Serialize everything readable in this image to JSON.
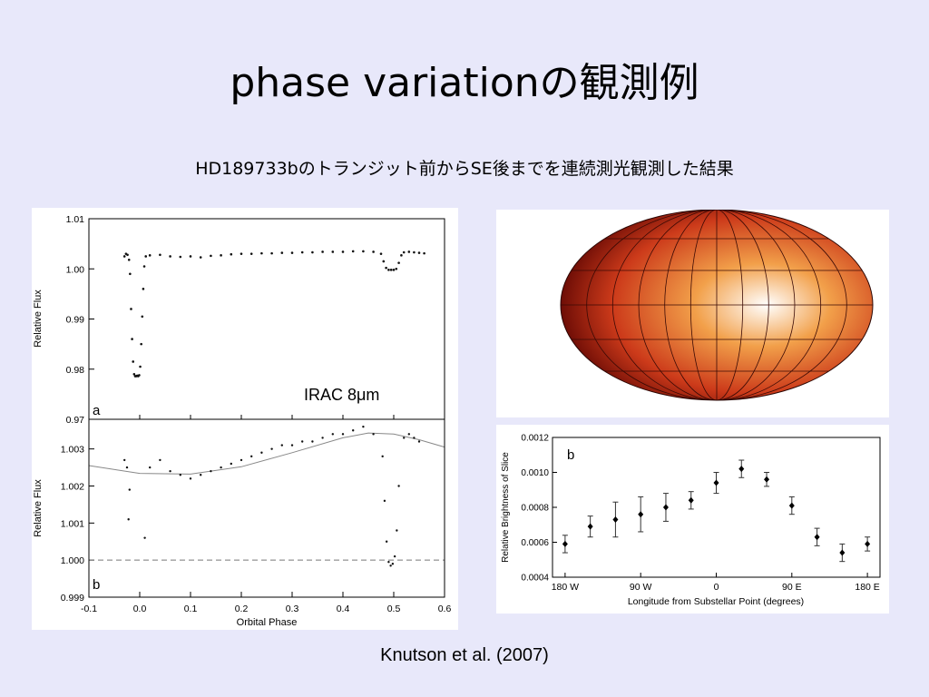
{
  "slide": {
    "title": "phase variationの観測例",
    "subtitle": "HD189733bのトランジット前からSE後までを連続測光観測した結果",
    "citation": "Knutson et al. (2007)",
    "instrument_label": "IRAC 8μm"
  },
  "colors": {
    "background": "#e8e8fa",
    "map_hot": "#ffffff",
    "map_warm": "#f2a04a",
    "map_cool": "#cc3a1a",
    "map_edge": "#6e0d06"
  },
  "map": {
    "projection": "Hammer-Aitoff"
  },
  "chart_data": [
    {
      "type": "scatter",
      "panel_label": "a",
      "xlabel": "",
      "ylabel": "Relative Flux",
      "xlim": [
        -0.1,
        0.6
      ],
      "ylim": [
        0.97,
        1.01
      ],
      "y_ticks": [
        "0.97",
        "0.98",
        "0.99",
        "1.00",
        "1.01"
      ],
      "grid": false,
      "points": [
        [
          -0.03,
          1.0025
        ],
        [
          -0.027,
          1.003
        ],
        [
          -0.024,
          1.0028
        ],
        [
          -0.021,
          1.0018
        ],
        [
          -0.019,
          0.999
        ],
        [
          -0.017,
          0.992
        ],
        [
          -0.015,
          0.986
        ],
        [
          -0.013,
          0.9815
        ],
        [
          -0.011,
          0.979
        ],
        [
          -0.009,
          0.9786
        ],
        [
          -0.007,
          0.9786
        ],
        [
          -0.005,
          0.9787
        ],
        [
          -0.003,
          0.9786
        ],
        [
          -0.001,
          0.9788
        ],
        [
          0.001,
          0.9805
        ],
        [
          0.003,
          0.985
        ],
        [
          0.005,
          0.9905
        ],
        [
          0.007,
          0.996
        ],
        [
          0.009,
          1.0005
        ],
        [
          0.012,
          1.0025
        ],
        [
          0.02,
          1.0027
        ],
        [
          0.04,
          1.0028
        ],
        [
          0.06,
          1.0025
        ],
        [
          0.08,
          1.0024
        ],
        [
          0.1,
          1.0025
        ],
        [
          0.12,
          1.0023
        ],
        [
          0.14,
          1.0026
        ],
        [
          0.16,
          1.0027
        ],
        [
          0.18,
          1.0029
        ],
        [
          0.2,
          1.003
        ],
        [
          0.22,
          1.003
        ],
        [
          0.24,
          1.0031
        ],
        [
          0.26,
          1.0031
        ],
        [
          0.28,
          1.0032
        ],
        [
          0.3,
          1.0032
        ],
        [
          0.32,
          1.0033
        ],
        [
          0.34,
          1.0033
        ],
        [
          0.36,
          1.0034
        ],
        [
          0.38,
          1.0034
        ],
        [
          0.4,
          1.0034
        ],
        [
          0.42,
          1.0035
        ],
        [
          0.44,
          1.0035
        ],
        [
          0.46,
          1.0034
        ],
        [
          0.475,
          1.003
        ],
        [
          0.48,
          1.0015
        ],
        [
          0.485,
          1.0002
        ],
        [
          0.49,
          0.9998
        ],
        [
          0.495,
          0.9998
        ],
        [
          0.5,
          0.9998
        ],
        [
          0.505,
          1.0
        ],
        [
          0.51,
          1.0012
        ],
        [
          0.515,
          1.0027
        ],
        [
          0.52,
          1.0033
        ],
        [
          0.53,
          1.0034
        ],
        [
          0.54,
          1.0033
        ],
        [
          0.55,
          1.0032
        ],
        [
          0.56,
          1.0031
        ]
      ]
    },
    {
      "type": "scatter",
      "panel_label": "b",
      "xlabel": "Orbital Phase",
      "ylabel": "Relative Flux",
      "xlim": [
        -0.1,
        0.6
      ],
      "ylim": [
        0.999,
        1.0038
      ],
      "x_ticks": [
        "-0.1",
        "0.0",
        "0.1",
        "0.2",
        "0.3",
        "0.4",
        "0.5",
        "0.6"
      ],
      "y_ticks": [
        "0.999",
        "1.000",
        "1.001",
        "1.002",
        "1.003"
      ],
      "reference_line_y": 1.0,
      "fit_curve": [
        [
          -0.1,
          1.00255
        ],
        [
          0.0,
          1.00234
        ],
        [
          0.1,
          1.00232
        ],
        [
          0.2,
          1.00252
        ],
        [
          0.3,
          1.0029
        ],
        [
          0.4,
          1.0033
        ],
        [
          0.45,
          1.00343
        ],
        [
          0.5,
          1.0034
        ],
        [
          0.55,
          1.00325
        ],
        [
          0.6,
          1.00305
        ]
      ],
      "points": [
        [
          -0.03,
          1.0027
        ],
        [
          -0.025,
          1.0025
        ],
        [
          -0.022,
          1.0011
        ],
        [
          -0.02,
          1.0019
        ],
        [
          0.01,
          1.0006
        ],
        [
          0.02,
          1.0025
        ],
        [
          0.04,
          1.0027
        ],
        [
          0.06,
          1.0024
        ],
        [
          0.08,
          1.0023
        ],
        [
          0.1,
          1.0022
        ],
        [
          0.12,
          1.0023
        ],
        [
          0.14,
          1.0024
        ],
        [
          0.16,
          1.0025
        ],
        [
          0.18,
          1.0026
        ],
        [
          0.2,
          1.0027
        ],
        [
          0.22,
          1.0028
        ],
        [
          0.24,
          1.0029
        ],
        [
          0.26,
          1.003
        ],
        [
          0.28,
          1.0031
        ],
        [
          0.3,
          1.0031
        ],
        [
          0.32,
          1.0032
        ],
        [
          0.34,
          1.0032
        ],
        [
          0.36,
          1.0033
        ],
        [
          0.38,
          1.0034
        ],
        [
          0.4,
          1.0034
        ],
        [
          0.42,
          1.0035
        ],
        [
          0.44,
          1.0036
        ],
        [
          0.46,
          1.0034
        ],
        [
          0.478,
          1.0028
        ],
        [
          0.482,
          1.0016
        ],
        [
          0.486,
          1.0005
        ],
        [
          0.49,
          0.99995
        ],
        [
          0.494,
          0.99985
        ],
        [
          0.498,
          0.9999
        ],
        [
          0.502,
          1.0001
        ],
        [
          0.506,
          1.0008
        ],
        [
          0.51,
          1.002
        ],
        [
          0.52,
          1.0033
        ],
        [
          0.53,
          1.0034
        ],
        [
          0.54,
          1.0033
        ],
        [
          0.55,
          1.0032
        ]
      ]
    },
    {
      "type": "scatter",
      "panel_label": "b",
      "xlabel": "Longitude from Substellar Point (degrees)",
      "ylabel": "Relative Brightness of Slice",
      "xlim": [
        -195,
        195
      ],
      "ylim": [
        0.0004,
        0.0012
      ],
      "x_tick_values": [
        -180,
        -90,
        0,
        90,
        180
      ],
      "x_ticks": [
        "180 W",
        "90 W",
        "0",
        "90 E",
        "180 E"
      ],
      "y_ticks": [
        "0.0004",
        "0.0006",
        "0.0008",
        "0.0010",
        "0.0012"
      ],
      "x": [
        -180,
        -150,
        -120,
        -90,
        -60,
        -30,
        0,
        30,
        60,
        90,
        120,
        150,
        180
      ],
      "values": [
        0.00059,
        0.00069,
        0.00073,
        0.00076,
        0.0008,
        0.00084,
        0.00094,
        0.00102,
        0.00096,
        0.00081,
        0.00063,
        0.00054,
        0.00059
      ],
      "errors": [
        5e-05,
        6e-05,
        0.0001,
        0.0001,
        8e-05,
        5e-05,
        6e-05,
        5e-05,
        4e-05,
        5e-05,
        5e-05,
        5e-05,
        4e-05
      ]
    }
  ]
}
